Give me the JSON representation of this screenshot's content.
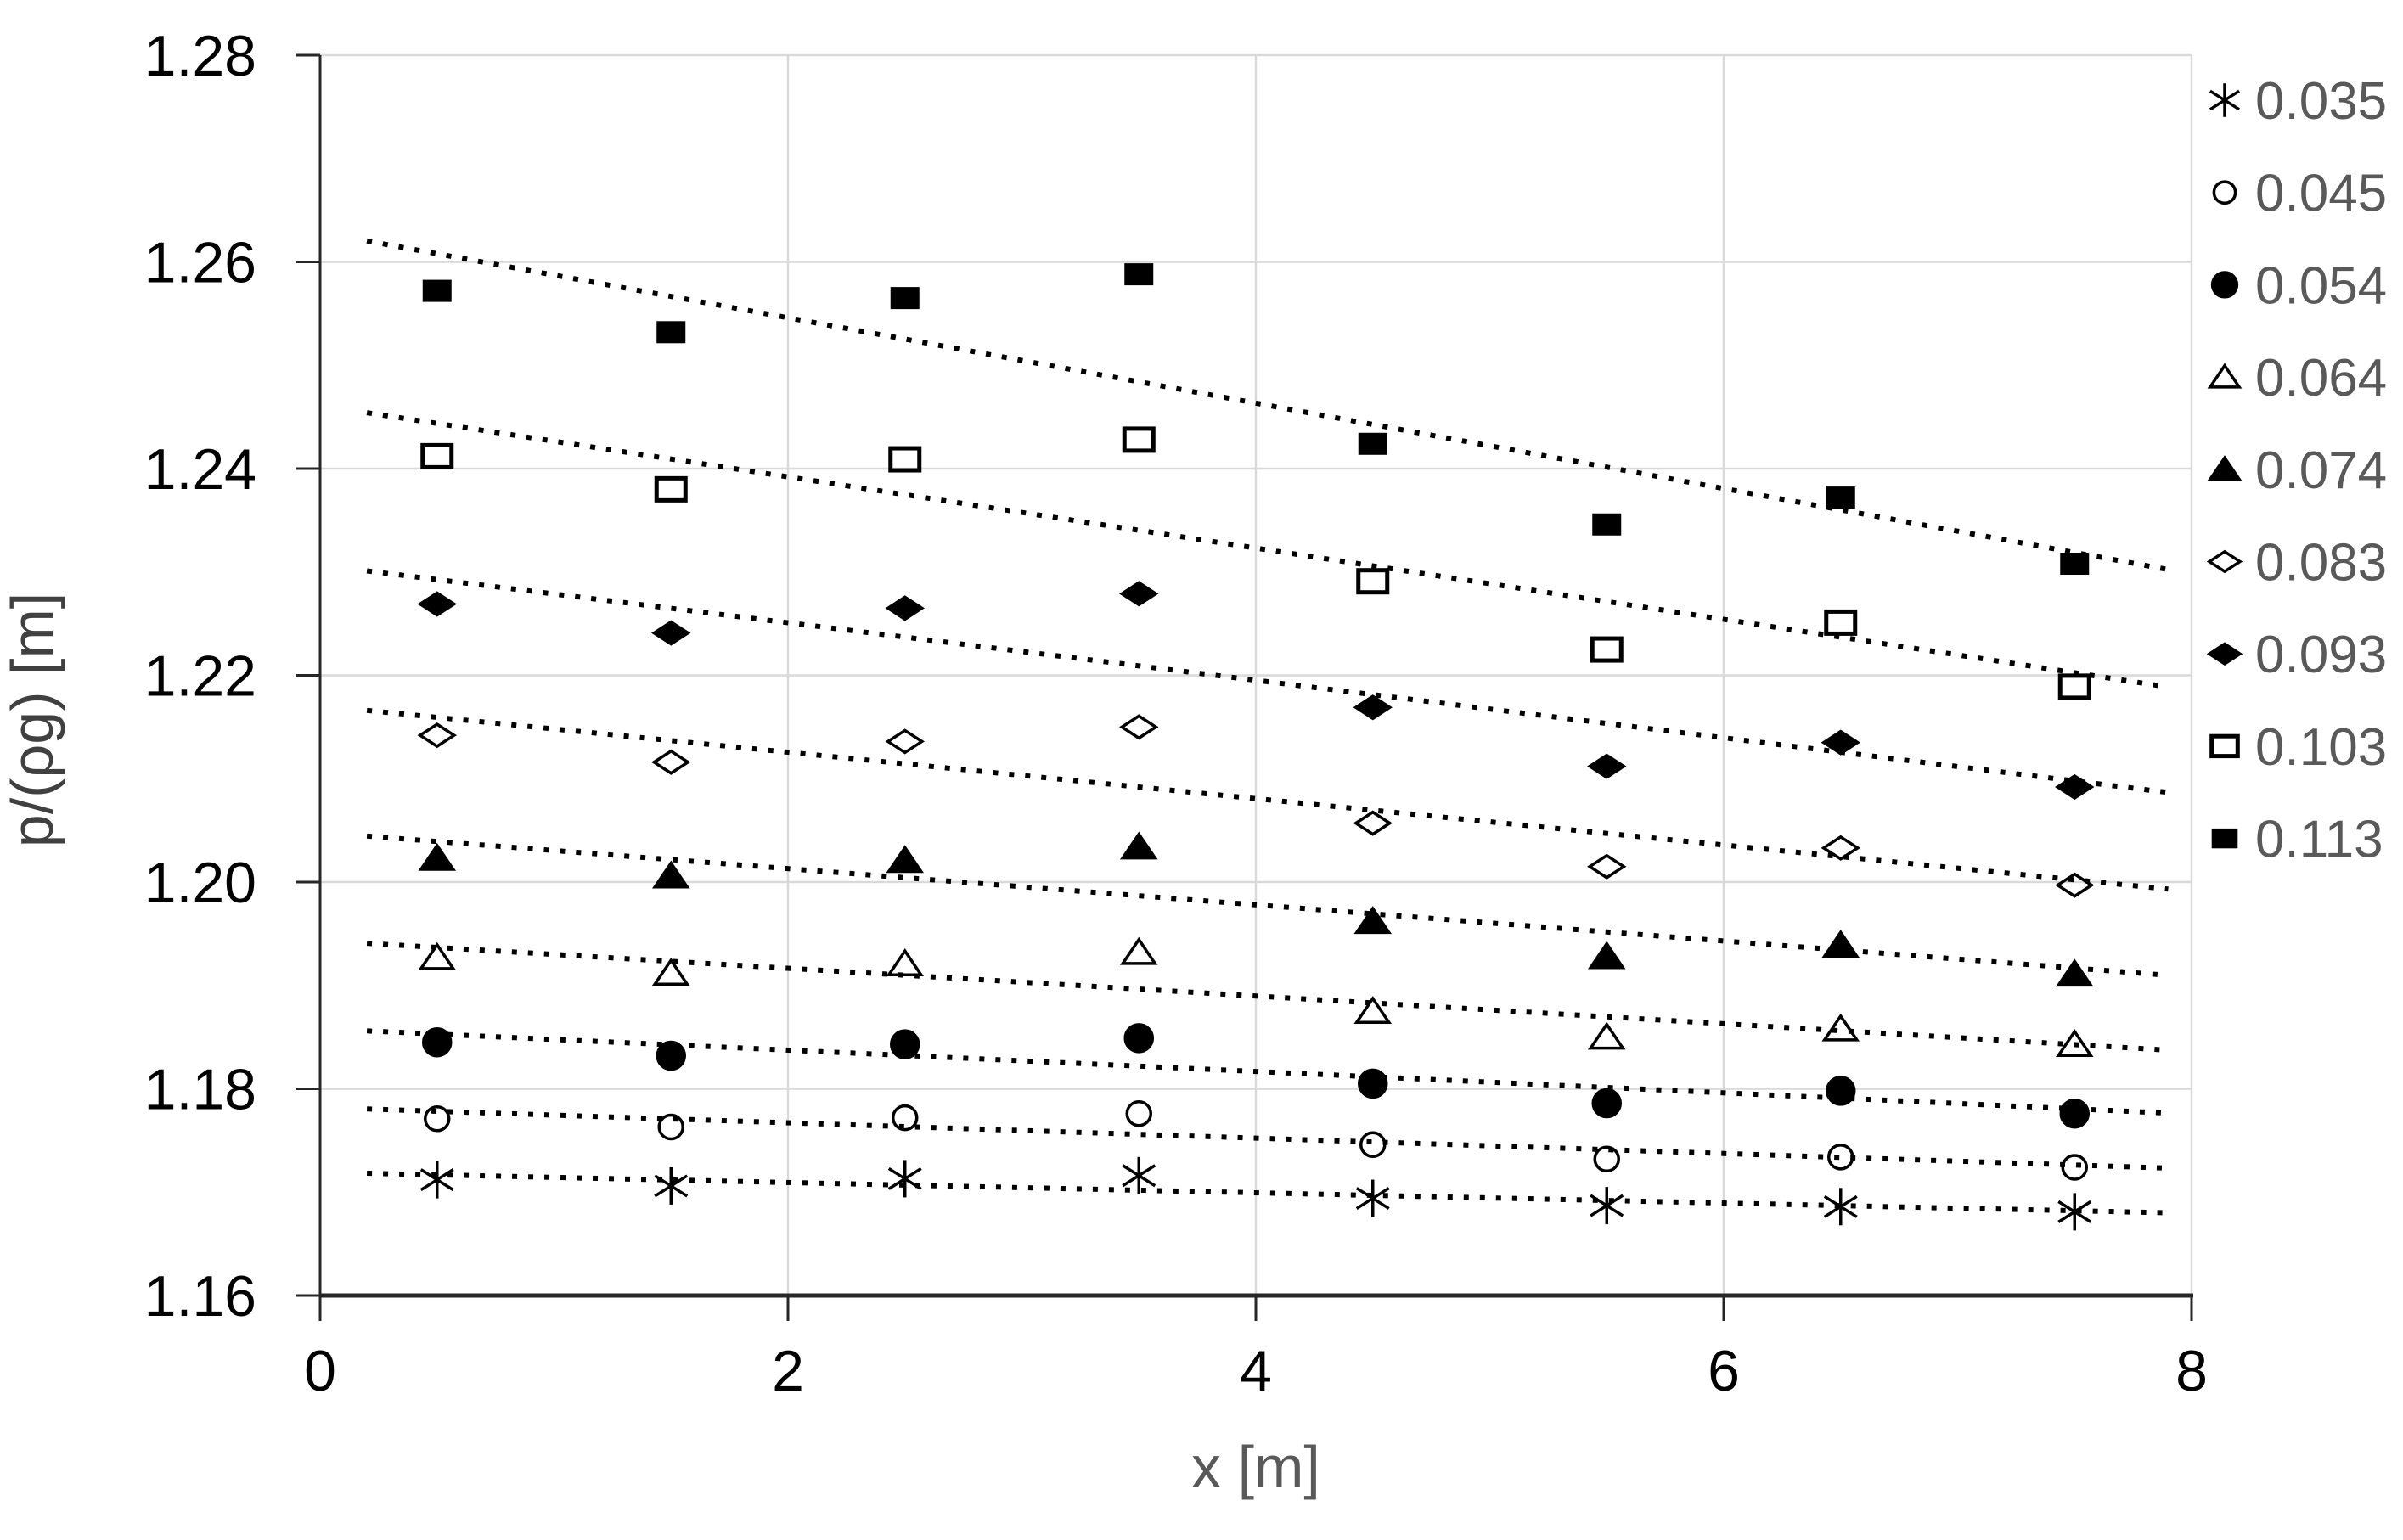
{
  "chart": {
    "background": "#ffffff",
    "grid_color": "#d9d9d9",
    "axis_color": "#262626",
    "tick_label_color": "#000000",
    "x_title_color": "#595959",
    "y_title_color": "#404040",
    "legend_text_color": "#595959",
    "marker_color": "#000000",
    "trendline_color": "#000000"
  },
  "chart_data": {
    "type": "scatter",
    "title": "",
    "xlabel": "x [m]",
    "ylabel": "p/(ρg) [m]",
    "xlim": [
      0,
      8
    ],
    "ylim": [
      1.16,
      1.28
    ],
    "xticks": {
      "values": [
        0,
        2,
        4,
        6,
        8
      ],
      "labels": [
        "0",
        "2",
        "4",
        "6",
        "8"
      ]
    },
    "yticks": {
      "values": [
        1.16,
        1.18,
        1.2,
        1.22,
        1.24,
        1.26,
        1.28
      ],
      "labels": [
        "1.16",
        "1.18",
        "1.20",
        "1.22",
        "1.24",
        "1.26",
        "1.28"
      ]
    },
    "grid": "both",
    "legend_position": "right",
    "trendline": "linear-dotted",
    "trendline_span": [
      0.2,
      7.9
    ],
    "x": [
      0.5,
      1.5,
      2.5,
      3.5,
      4.5,
      5.5,
      6.5,
      7.5
    ],
    "series": [
      {
        "name": "0.035",
        "marker": "star6",
        "fill": "open",
        "values": [
          1.1712,
          1.1706,
          1.1713,
          1.1716,
          1.1694,
          1.1687,
          1.1686,
          1.1681
        ]
      },
      {
        "name": "0.045",
        "marker": "circle",
        "fill": "open",
        "values": [
          1.1771,
          1.1763,
          1.1772,
          1.1776,
          1.1746,
          1.1732,
          1.1734,
          1.1724
        ]
      },
      {
        "name": "0.054",
        "marker": "circle",
        "fill": "filled",
        "values": [
          1.1845,
          1.1832,
          1.1843,
          1.1849,
          1.1805,
          1.1786,
          1.1798,
          1.1776
        ]
      },
      {
        "name": "0.064",
        "marker": "triangle",
        "fill": "open",
        "values": [
          1.1927,
          1.1912,
          1.1921,
          1.1932,
          1.1875,
          1.185,
          1.1858,
          1.1843
        ]
      },
      {
        "name": "0.074",
        "marker": "triangle",
        "fill": "filled",
        "values": [
          1.2023,
          1.2006,
          1.2021,
          1.2034,
          1.1962,
          1.1928,
          1.1939,
          1.1911
        ]
      },
      {
        "name": "0.083",
        "marker": "diamond",
        "fill": "open",
        "values": [
          1.2142,
          1.2116,
          1.2136,
          1.215,
          1.2057,
          1.2015,
          1.2033,
          1.1997
        ]
      },
      {
        "name": "0.093",
        "marker": "diamond",
        "fill": "filled",
        "values": [
          1.2269,
          1.2241,
          1.2265,
          1.2279,
          1.2169,
          1.2112,
          1.2135,
          1.2092
        ]
      },
      {
        "name": "0.103",
        "marker": "square",
        "fill": "open",
        "values": [
          1.2412,
          1.238,
          1.2409,
          1.2428,
          1.2291,
          1.2225,
          1.2251,
          1.2189
        ]
      },
      {
        "name": "0.113",
        "marker": "square",
        "fill": "filled",
        "values": [
          1.2572,
          1.2532,
          1.2565,
          1.2588,
          1.2424,
          1.2346,
          1.2372,
          1.2308
        ]
      }
    ]
  }
}
